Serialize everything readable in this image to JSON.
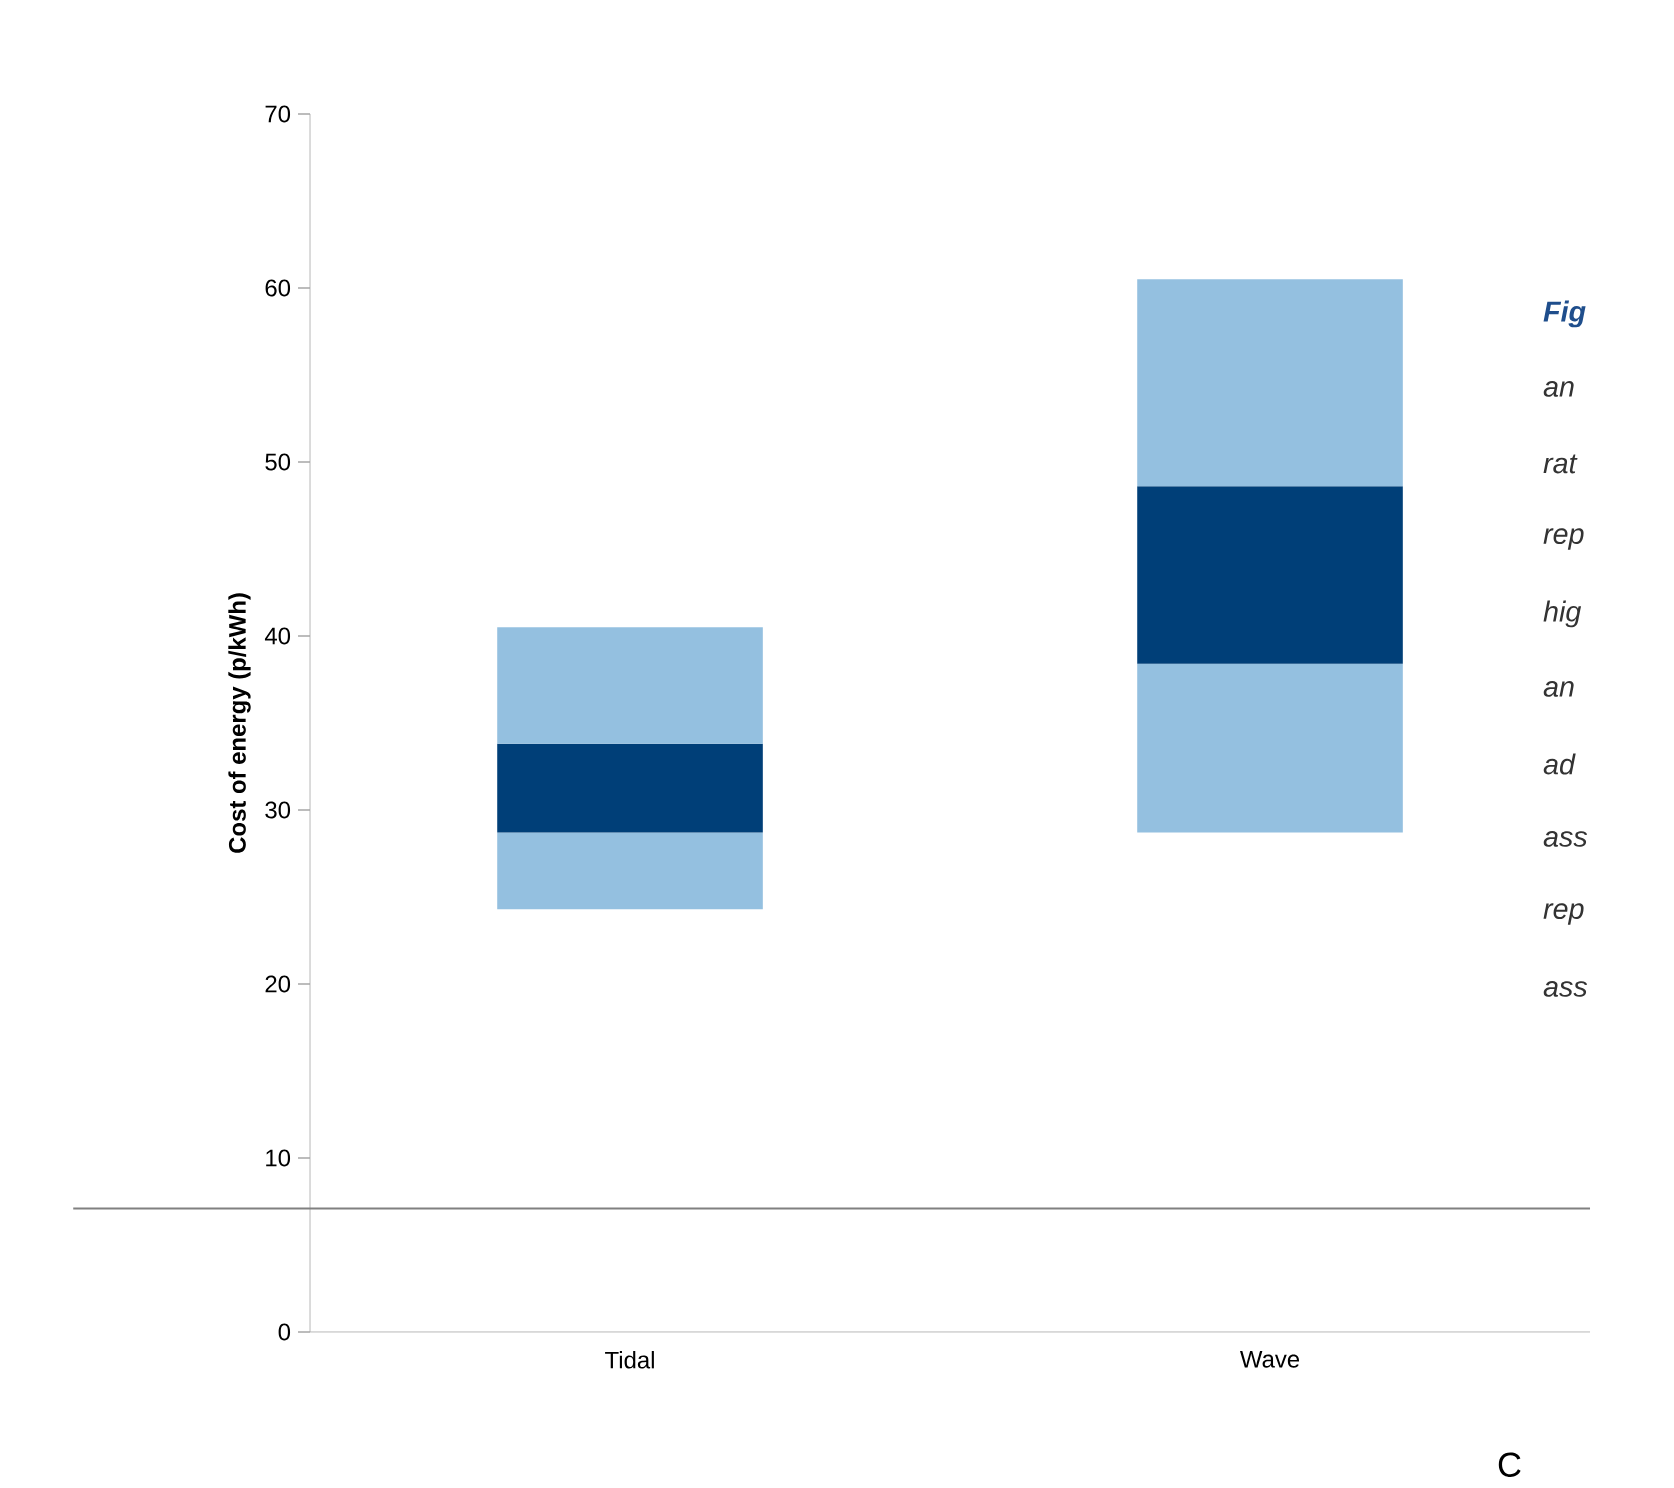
{
  "chart_data": {
    "type": "bar",
    "ylabel": "Cost of energy (p/kWh)",
    "categories": [
      "Tidal",
      "Wave"
    ],
    "series": [
      {
        "color": "#94c0e0",
        "base": [
          24.3,
          28.7
        ],
        "values": [
          4.4,
          9.7
        ]
      },
      {
        "color": "#003f78",
        "base": [
          28.7,
          38.4
        ],
        "values": [
          5.1,
          10.2
        ]
      },
      {
        "color": "#94c0e0",
        "base": [
          33.8,
          48.6
        ],
        "values": [
          6.7,
          11.9
        ]
      }
    ],
    "ylim": [
      0,
      70
    ],
    "yticks": [
      0,
      10,
      20,
      30,
      40,
      50,
      60,
      70
    ],
    "grid": false,
    "ref_lines": [
      {
        "axis": "y",
        "value": 7.1,
        "color": "#808080"
      }
    ],
    "annotations": [
      "Fig",
      "an",
      "rat",
      "rep",
      "hig",
      "an",
      "ad",
      "ass",
      "rep",
      "ass",
      "C"
    ]
  }
}
